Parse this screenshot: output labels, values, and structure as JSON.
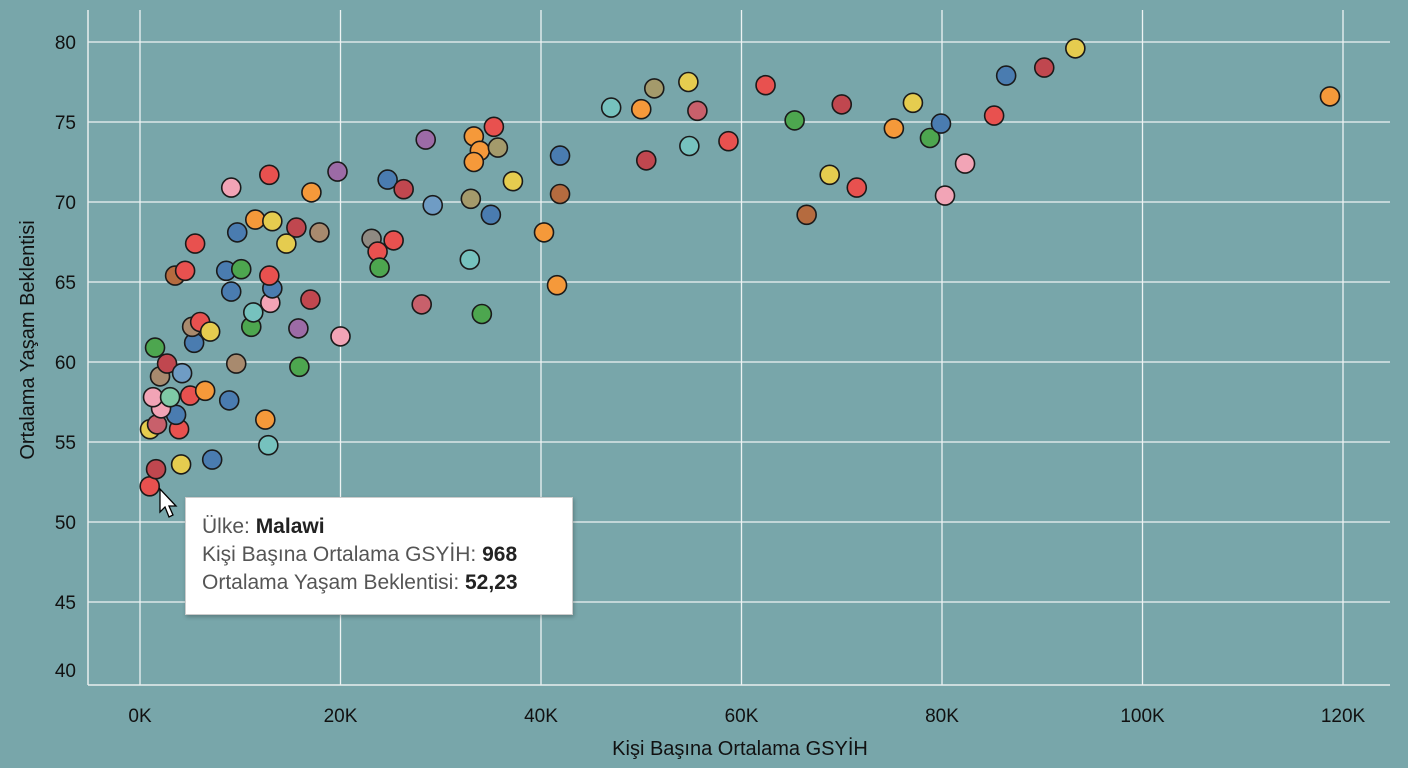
{
  "chart_data": {
    "type": "scatter",
    "xlabel": "Kişi Başına Ortalama GSYİH",
    "ylabel": "Ortalama Yaşam Beklentisi",
    "xlim": [
      0,
      120000
    ],
    "ylim": [
      40,
      80
    ],
    "x_ticks": [
      {
        "v": 0,
        "label": "0K"
      },
      {
        "v": 20000,
        "label": "20K"
      },
      {
        "v": 40000,
        "label": "40K"
      },
      {
        "v": 60000,
        "label": "60K"
      },
      {
        "v": 80000,
        "label": "80K"
      },
      {
        "v": 100000,
        "label": "100K"
      },
      {
        "v": 120000,
        "label": "120K"
      }
    ],
    "y_ticks": [
      40,
      45,
      50,
      55,
      60,
      65,
      70,
      75,
      80
    ],
    "grid": true,
    "background": "#78a6aa",
    "palette": {
      "red": "#e8514f",
      "darkred": "#c0474f",
      "orange": "#f5993a",
      "yellow": "#e5cc4f",
      "blue": "#4a7cb0",
      "lightblue": "#6f9cc4",
      "green": "#4da64f",
      "tan": "#a88a6e",
      "brown": "#b56b3f",
      "pink": "#f2a4b6",
      "teal": "#76c2be",
      "purple": "#9c6ba6",
      "olive": "#a49a6b",
      "gray": "#8f8a82",
      "rosy": "#c8606b",
      "mint": "#7fc9a6"
    },
    "points": [
      [
        968,
        52.23,
        "red"
      ],
      [
        1600,
        53.3,
        "darkred"
      ],
      [
        4100,
        53.6,
        "yellow"
      ],
      [
        7200,
        53.9,
        "blue"
      ],
      [
        12800,
        54.8,
        "teal"
      ],
      [
        12500,
        56.4,
        "orange"
      ],
      [
        1000,
        55.8,
        "yellow"
      ],
      [
        1700,
        56.1,
        "rosy"
      ],
      [
        3900,
        55.8,
        "red"
      ],
      [
        3600,
        56.7,
        "blue"
      ],
      [
        2100,
        57.1,
        "pink"
      ],
      [
        1300,
        57.8,
        "pink"
      ],
      [
        3000,
        57.8,
        "mint"
      ],
      [
        5000,
        57.9,
        "red"
      ],
      [
        6500,
        58.2,
        "orange"
      ],
      [
        8900,
        57.6,
        "blue"
      ],
      [
        2000,
        59.1,
        "tan"
      ],
      [
        2700,
        59.9,
        "darkred"
      ],
      [
        4200,
        59.3,
        "lightblue"
      ],
      [
        1500,
        60.9,
        "green"
      ],
      [
        9600,
        59.9,
        "tan"
      ],
      [
        15900,
        59.7,
        "green"
      ],
      [
        5400,
        61.2,
        "blue"
      ],
      [
        5200,
        62.2,
        "tan"
      ],
      [
        6000,
        62.5,
        "red"
      ],
      [
        7000,
        61.9,
        "yellow"
      ],
      [
        11100,
        62.2,
        "green"
      ],
      [
        11300,
        63.1,
        "teal"
      ],
      [
        13000,
        63.7,
        "pink"
      ],
      [
        15800,
        62.1,
        "purple"
      ],
      [
        17000,
        63.9,
        "darkred"
      ],
      [
        20000,
        61.6,
        "pink"
      ],
      [
        9100,
        64.4,
        "blue"
      ],
      [
        13200,
        64.6,
        "blue"
      ],
      [
        12900,
        65.4,
        "red"
      ],
      [
        8600,
        65.7,
        "blue"
      ],
      [
        10100,
        65.8,
        "green"
      ],
      [
        3500,
        65.4,
        "brown"
      ],
      [
        4500,
        65.7,
        "red"
      ],
      [
        5500,
        67.4,
        "red"
      ],
      [
        9700,
        68.1,
        "blue"
      ],
      [
        11500,
        68.9,
        "orange"
      ],
      [
        13200,
        68.8,
        "yellow"
      ],
      [
        14600,
        67.4,
        "yellow"
      ],
      [
        15600,
        68.4,
        "darkred"
      ],
      [
        17900,
        68.1,
        "tan"
      ],
      [
        9100,
        70.9,
        "pink"
      ],
      [
        12900,
        71.7,
        "red"
      ],
      [
        17100,
        70.6,
        "orange"
      ],
      [
        19700,
        71.9,
        "purple"
      ],
      [
        23100,
        67.7,
        "gray"
      ],
      [
        23700,
        66.9,
        "red"
      ],
      [
        25300,
        67.6,
        "red"
      ],
      [
        23900,
        65.9,
        "green"
      ],
      [
        24700,
        71.4,
        "blue"
      ],
      [
        26300,
        70.8,
        "darkred"
      ],
      [
        28100,
        63.6,
        "rosy"
      ],
      [
        28500,
        73.9,
        "purple"
      ],
      [
        29200,
        69.8,
        "lightblue"
      ],
      [
        32900,
        66.4,
        "teal"
      ],
      [
        33000,
        70.2,
        "olive"
      ],
      [
        34100,
        63.0,
        "green"
      ],
      [
        35000,
        69.2,
        "blue"
      ],
      [
        33300,
        74.1,
        "orange"
      ],
      [
        33900,
        73.2,
        "orange"
      ],
      [
        33300,
        72.5,
        "orange"
      ],
      [
        35300,
        74.7,
        "red"
      ],
      [
        35700,
        73.4,
        "olive"
      ],
      [
        37200,
        71.3,
        "yellow"
      ],
      [
        40300,
        68.1,
        "orange"
      ],
      [
        41600,
        64.8,
        "orange"
      ],
      [
        41900,
        70.5,
        "brown"
      ],
      [
        41900,
        72.9,
        "blue"
      ],
      [
        47000,
        75.9,
        "teal"
      ],
      [
        50000,
        75.8,
        "orange"
      ],
      [
        50500,
        72.6,
        "darkred"
      ],
      [
        51300,
        77.1,
        "olive"
      ],
      [
        54700,
        77.5,
        "yellow"
      ],
      [
        54800,
        73.5,
        "teal"
      ],
      [
        55600,
        75.7,
        "rosy"
      ],
      [
        58700,
        73.8,
        "red"
      ],
      [
        62400,
        77.3,
        "red"
      ],
      [
        65300,
        75.1,
        "green"
      ],
      [
        66500,
        69.2,
        "brown"
      ],
      [
        68800,
        71.7,
        "yellow"
      ],
      [
        70000,
        76.1,
        "darkred"
      ],
      [
        71500,
        70.9,
        "red"
      ],
      [
        75200,
        74.6,
        "orange"
      ],
      [
        77100,
        76.2,
        "yellow"
      ],
      [
        78800,
        74.0,
        "green"
      ],
      [
        79900,
        74.9,
        "blue"
      ],
      [
        80300,
        70.4,
        "pink"
      ],
      [
        82300,
        72.4,
        "pink"
      ],
      [
        85200,
        75.4,
        "red"
      ],
      [
        86400,
        77.9,
        "blue"
      ],
      [
        90200,
        78.4,
        "darkred"
      ],
      [
        93300,
        79.6,
        "yellow"
      ],
      [
        118700,
        76.6,
        "orange"
      ]
    ]
  },
  "tooltip": {
    "country_label": "Ülke: ",
    "country_value": "Malawi",
    "gdp_label": "Kişi Başına Ortalama GSYİH: ",
    "gdp_value": "968",
    "life_label": "Ortalama Yaşam Beklentisi: ",
    "life_value": "52,23"
  }
}
